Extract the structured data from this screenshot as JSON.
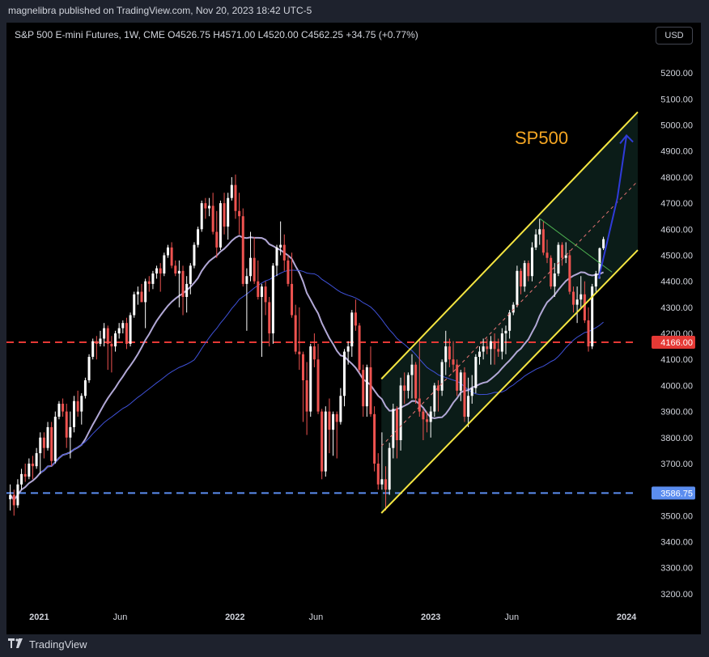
{
  "header": {
    "published": "magnelibra published on TradingView.com, Nov 20, 2023 18:42 UTC-5"
  },
  "chart_header": {
    "symbol_line": "S&P 500 E-mini Futures, 1W, CME  O4526.75  H4571.00  L4520.00  C4562.25  +34.75 (+0.77%)",
    "currency_button": "USD"
  },
  "footer": {
    "logo_icon": "tradingview-logo-icon",
    "brand": "TradingView"
  },
  "colors": {
    "up": "#ffffff",
    "down": "#ef5350",
    "ma_fast": "#b2a8d6",
    "ma_slow": "#3f51d8",
    "channel": "#f5e642",
    "resistance": "#e53935",
    "support": "#5b8def",
    "projection": "#2f3bd9",
    "annotation": "#f5a623"
  },
  "chart_data": {
    "type": "candlestick",
    "title": "SP500",
    "y_axis": {
      "range": [
        3150,
        5300
      ],
      "ticks": [
        3200,
        3300,
        3400,
        3500,
        3600,
        3700,
        3800,
        3900,
        4000,
        4100,
        4200,
        4300,
        4400,
        4500,
        4600,
        4700,
        4800,
        4900,
        5000,
        5100,
        5200
      ],
      "tick_labels": [
        "3200.00",
        "3300.00",
        "3400.00",
        "3500.00",
        "3600.00",
        "3700.00",
        "3800.00",
        "3900.00",
        "4000.00",
        "4100.00",
        "4200.00",
        "4300.00",
        "4400.00",
        "4500.00",
        "4600.00",
        "4700.00",
        "4800.00",
        "4900.00",
        "5000.00",
        "5100.00",
        "5200.00"
      ]
    },
    "x_axis": {
      "range": [
        "2020-11-01",
        "2024-01-22"
      ],
      "ticks": [
        {
          "date": "2021-01-01",
          "label": "2021"
        },
        {
          "date": "2021-06-01",
          "label": "Jun"
        },
        {
          "date": "2022-01-01",
          "label": "2022"
        },
        {
          "date": "2022-06-01",
          "label": "Jun"
        },
        {
          "date": "2023-01-01",
          "label": "2023"
        },
        {
          "date": "2023-06-01",
          "label": "Jun"
        },
        {
          "date": "2024-01-01",
          "label": "2024"
        }
      ]
    },
    "price_labels": [
      {
        "value": 4166.0,
        "label": "4166.00",
        "style": "resistance"
      },
      {
        "value": 3586.75,
        "label": "3586.75",
        "style": "support"
      }
    ],
    "horizontal_levels": [
      {
        "value": 4166.0,
        "color": "#e53935",
        "dashed": true
      },
      {
        "value": 3586.75,
        "color": "#5b8def",
        "dashed": true
      }
    ],
    "channel": {
      "upper": [
        [
          "2022-10-01",
          4025
        ],
        [
          "2024-01-22",
          5050
        ]
      ],
      "lower": [
        [
          "2022-10-01",
          3510
        ],
        [
          "2024-01-22",
          4520
        ]
      ],
      "mid": [
        [
          "2022-10-01",
          3767
        ],
        [
          "2024-01-22",
          4785
        ]
      ]
    },
    "projection_arrow": [
      [
        "2023-11-10",
        4410
      ],
      [
        "2023-12-15",
        4720
      ],
      [
        "2024-01-01",
        4960
      ]
    ],
    "green_line": [
      [
        "2023-07-24",
        4640
      ],
      [
        "2023-12-05",
        4435
      ]
    ],
    "ohlc": [
      [
        "2020-11-08",
        3563,
        3620,
        3520,
        3580
      ],
      [
        "2020-11-15",
        3580,
        3600,
        3500,
        3540
      ],
      [
        "2020-11-22",
        3540,
        3640,
        3530,
        3620
      ],
      [
        "2020-11-29",
        3620,
        3680,
        3600,
        3660
      ],
      [
        "2020-12-06",
        3660,
        3700,
        3630,
        3650
      ],
      [
        "2020-12-13",
        3650,
        3720,
        3640,
        3700
      ],
      [
        "2020-12-20",
        3700,
        3730,
        3640,
        3690
      ],
      [
        "2020-12-27",
        3690,
        3760,
        3680,
        3740
      ],
      [
        "2021-01-03",
        3740,
        3820,
        3660,
        3800
      ],
      [
        "2021-01-10",
        3800,
        3820,
        3720,
        3760
      ],
      [
        "2021-01-17",
        3760,
        3860,
        3750,
        3840
      ],
      [
        "2021-01-24",
        3840,
        3860,
        3690,
        3710
      ],
      [
        "2021-01-31",
        3710,
        3900,
        3700,
        3880
      ],
      [
        "2021-02-07",
        3880,
        3940,
        3870,
        3930
      ],
      [
        "2021-02-14",
        3930,
        3950,
        3880,
        3900
      ],
      [
        "2021-02-21",
        3900,
        3930,
        3760,
        3800
      ],
      [
        "2021-02-28",
        3800,
        3900,
        3720,
        3840
      ],
      [
        "2021-03-07",
        3840,
        3960,
        3820,
        3940
      ],
      [
        "2021-03-14",
        3940,
        3980,
        3880,
        3900
      ],
      [
        "2021-03-21",
        3900,
        3970,
        3850,
        3960
      ],
      [
        "2021-03-28",
        3960,
        4030,
        3950,
        4020
      ],
      [
        "2021-04-04",
        4020,
        4120,
        4010,
        4110
      ],
      [
        "2021-04-11",
        4110,
        4180,
        4100,
        4170
      ],
      [
        "2021-04-18",
        4170,
        4190,
        4100,
        4160
      ],
      [
        "2021-04-25",
        4160,
        4210,
        4150,
        4180
      ],
      [
        "2021-05-02",
        4180,
        4240,
        4150,
        4220
      ],
      [
        "2021-05-09",
        4220,
        4230,
        4060,
        4160
      ],
      [
        "2021-05-16",
        4160,
        4190,
        4050,
        4150
      ],
      [
        "2021-05-23",
        4150,
        4210,
        4130,
        4200
      ],
      [
        "2021-05-30",
        4200,
        4240,
        4180,
        4220
      ],
      [
        "2021-06-06",
        4220,
        4250,
        4200,
        4240
      ],
      [
        "2021-06-13",
        4240,
        4260,
        4140,
        4160
      ],
      [
        "2021-06-20",
        4160,
        4280,
        4150,
        4270
      ],
      [
        "2021-06-27",
        4270,
        4360,
        4260,
        4350
      ],
      [
        "2021-07-04",
        4350,
        4380,
        4310,
        4360
      ],
      [
        "2021-07-11",
        4360,
        4390,
        4320,
        4320
      ],
      [
        "2021-07-18",
        4320,
        4410,
        4220,
        4400
      ],
      [
        "2021-07-25",
        4400,
        4420,
        4360,
        4390
      ],
      [
        "2021-08-01",
        4390,
        4440,
        4370,
        4430
      ],
      [
        "2021-08-08",
        4430,
        4460,
        4410,
        4450
      ],
      [
        "2021-08-15",
        4450,
        4470,
        4360,
        4430
      ],
      [
        "2021-08-22",
        4430,
        4510,
        4420,
        4500
      ],
      [
        "2021-08-29",
        4500,
        4540,
        4490,
        4530
      ],
      [
        "2021-09-05",
        4530,
        4550,
        4450,
        4460
      ],
      [
        "2021-09-12",
        4460,
        4480,
        4420,
        4430
      ],
      [
        "2021-09-19",
        4430,
        4480,
        4300,
        4440
      ],
      [
        "2021-09-26",
        4440,
        4460,
        4270,
        4340
      ],
      [
        "2021-10-03",
        4340,
        4420,
        4280,
        4390
      ],
      [
        "2021-10-10",
        4390,
        4470,
        4350,
        4460
      ],
      [
        "2021-10-17",
        4460,
        4550,
        4450,
        4540
      ],
      [
        "2021-10-24",
        4540,
        4610,
        4530,
        4600
      ],
      [
        "2021-10-31",
        4600,
        4710,
        4590,
        4700
      ],
      [
        "2021-11-07",
        4700,
        4720,
        4640,
        4680
      ],
      [
        "2021-11-14",
        4680,
        4720,
        4650,
        4690
      ],
      [
        "2021-11-21",
        4690,
        4740,
        4580,
        4590
      ],
      [
        "2021-11-28",
        4590,
        4670,
        4490,
        4530
      ],
      [
        "2021-12-05",
        4530,
        4710,
        4520,
        4700
      ],
      [
        "2021-12-12",
        4700,
        4740,
        4580,
        4610
      ],
      [
        "2021-12-19",
        4610,
        4740,
        4560,
        4720
      ],
      [
        "2021-12-26",
        4720,
        4800,
        4710,
        4770
      ],
      [
        "2022-01-02",
        4770,
        4810,
        4640,
        4670
      ],
      [
        "2022-01-09",
        4670,
        4740,
        4580,
        4650
      ],
      [
        "2022-01-16",
        4650,
        4680,
        4380,
        4390
      ],
      [
        "2022-01-23",
        4390,
        4450,
        4210,
        4420
      ],
      [
        "2022-01-30",
        4420,
        4590,
        4400,
        4490
      ],
      [
        "2022-02-06",
        4490,
        4570,
        4390,
        4400
      ],
      [
        "2022-02-13",
        4400,
        4480,
        4330,
        4340
      ],
      [
        "2022-02-20",
        4340,
        4390,
        4110,
        4380
      ],
      [
        "2022-02-27",
        4380,
        4400,
        4270,
        4320
      ],
      [
        "2022-03-06",
        4320,
        4340,
        4150,
        4200
      ],
      [
        "2022-03-13",
        4200,
        4470,
        4160,
        4460
      ],
      [
        "2022-03-20",
        4460,
        4540,
        4420,
        4530
      ],
      [
        "2022-03-27",
        4530,
        4630,
        4500,
        4540
      ],
      [
        "2022-04-03",
        4540,
        4580,
        4440,
        4480
      ],
      [
        "2022-04-10",
        4480,
        4500,
        4380,
        4390
      ],
      [
        "2022-04-17",
        4390,
        4510,
        4260,
        4270
      ],
      [
        "2022-04-24",
        4270,
        4310,
        4120,
        4130
      ],
      [
        "2022-05-01",
        4130,
        4300,
        4060,
        4120
      ],
      [
        "2022-05-08",
        4120,
        4130,
        3860,
        4020
      ],
      [
        "2022-05-15",
        4020,
        4090,
        3810,
        3900
      ],
      [
        "2022-05-22",
        3900,
        4160,
        3880,
        4150
      ],
      [
        "2022-05-29",
        4150,
        4200,
        4070,
        4100
      ],
      [
        "2022-06-05",
        4100,
        4160,
        3890,
        3900
      ],
      [
        "2022-06-12",
        3900,
        3910,
        3640,
        3670
      ],
      [
        "2022-06-19",
        3670,
        3920,
        3650,
        3900
      ],
      [
        "2022-06-26",
        3900,
        3950,
        3740,
        3830
      ],
      [
        "2022-07-03",
        3830,
        3900,
        3730,
        3890
      ],
      [
        "2022-07-10",
        3890,
        3900,
        3720,
        3860
      ],
      [
        "2022-07-17",
        3860,
        3990,
        3850,
        3960
      ],
      [
        "2022-07-24",
        3960,
        4140,
        3920,
        4130
      ],
      [
        "2022-07-31",
        4130,
        4170,
        4080,
        4150
      ],
      [
        "2022-08-07",
        4150,
        4290,
        4110,
        4280
      ],
      [
        "2022-08-14",
        4280,
        4330,
        4210,
        4230
      ],
      [
        "2022-08-21",
        4230,
        4240,
        4050,
        4060
      ],
      [
        "2022-08-28",
        4060,
        4080,
        3880,
        3920
      ],
      [
        "2022-09-04",
        3920,
        4080,
        3880,
        4070
      ],
      [
        "2022-09-11",
        4070,
        4150,
        3880,
        3890
      ],
      [
        "2022-09-18",
        3890,
        3920,
        3670,
        3700
      ],
      [
        "2022-09-25",
        3700,
        3740,
        3600,
        3620
      ],
      [
        "2022-10-02",
        3620,
        3820,
        3600,
        3640
      ],
      [
        "2022-10-09",
        3640,
        3690,
        3520,
        3600
      ],
      [
        "2022-10-16",
        3600,
        3780,
        3580,
        3760
      ],
      [
        "2022-10-23",
        3760,
        3930,
        3720,
        3910
      ],
      [
        "2022-10-30",
        3910,
        3920,
        3720,
        3790
      ],
      [
        "2022-11-06",
        3790,
        4030,
        3750,
        4000
      ],
      [
        "2022-11-13",
        4000,
        4050,
        3930,
        3980
      ],
      [
        "2022-11-20",
        3980,
        4050,
        3950,
        4040
      ],
      [
        "2022-11-27",
        4040,
        4120,
        3950,
        4080
      ],
      [
        "2022-12-04",
        4080,
        4090,
        3930,
        3950
      ],
      [
        "2022-12-11",
        3950,
        4180,
        3880,
        3900
      ],
      [
        "2022-12-18",
        3900,
        3910,
        3790,
        3870
      ],
      [
        "2022-12-25",
        3870,
        3900,
        3820,
        3860
      ],
      [
        "2023-01-01",
        3860,
        3920,
        3800,
        3900
      ],
      [
        "2023-01-08",
        3900,
        4010,
        3880,
        4000
      ],
      [
        "2023-01-15",
        4000,
        4020,
        3900,
        3980
      ],
      [
        "2023-01-22",
        3980,
        4100,
        3960,
        4090
      ],
      [
        "2023-01-29",
        4090,
        4210,
        4040,
        4150
      ],
      [
        "2023-02-05",
        4150,
        4180,
        4070,
        4100
      ],
      [
        "2023-02-12",
        4100,
        4170,
        4050,
        4080
      ],
      [
        "2023-02-19",
        4080,
        4100,
        3960,
        3980
      ],
      [
        "2023-02-26",
        3980,
        4060,
        3940,
        4050
      ],
      [
        "2023-03-05",
        4050,
        4070,
        3860,
        3880
      ],
      [
        "2023-03-12",
        3880,
        4030,
        3840,
        3960
      ],
      [
        "2023-03-19",
        3960,
        4040,
        3930,
        3990
      ],
      [
        "2023-03-26",
        3990,
        4120,
        3970,
        4110
      ],
      [
        "2023-04-02",
        4110,
        4150,
        4080,
        4130
      ],
      [
        "2023-04-09",
        4130,
        4180,
        4100,
        4150
      ],
      [
        "2023-04-16",
        4150,
        4180,
        4120,
        4140
      ],
      [
        "2023-04-23",
        4140,
        4190,
        4080,
        4170
      ],
      [
        "2023-04-30",
        4170,
        4200,
        4080,
        4140
      ],
      [
        "2023-05-07",
        4140,
        4180,
        4110,
        4130
      ],
      [
        "2023-05-14",
        4130,
        4220,
        4100,
        4200
      ],
      [
        "2023-05-21",
        4200,
        4230,
        4120,
        4210
      ],
      [
        "2023-05-28",
        4210,
        4290,
        4180,
        4280
      ],
      [
        "2023-06-04",
        4280,
        4320,
        4270,
        4310
      ],
      [
        "2023-06-11",
        4310,
        4460,
        4300,
        4440
      ],
      [
        "2023-06-18",
        4440,
        4450,
        4350,
        4380
      ],
      [
        "2023-06-25",
        4380,
        4480,
        4360,
        4470
      ],
      [
        "2023-07-02",
        4470,
        4480,
        4400,
        4420
      ],
      [
        "2023-07-09",
        4420,
        4550,
        4400,
        4530
      ],
      [
        "2023-07-16",
        4530,
        4600,
        4520,
        4580
      ],
      [
        "2023-07-23",
        4580,
        4640,
        4540,
        4600
      ],
      [
        "2023-07-30",
        4600,
        4630,
        4500,
        4510
      ],
      [
        "2023-08-06",
        4510,
        4560,
        4470,
        4490
      ],
      [
        "2023-08-13",
        4490,
        4500,
        4370,
        4380
      ],
      [
        "2023-08-20",
        4380,
        4470,
        4340,
        4430
      ],
      [
        "2023-08-27",
        4430,
        4550,
        4420,
        4540
      ],
      [
        "2023-09-03",
        4540,
        4550,
        4460,
        4490
      ],
      [
        "2023-09-10",
        4490,
        4550,
        4470,
        4500
      ],
      [
        "2023-09-17",
        4500,
        4520,
        4350,
        4360
      ],
      [
        "2023-09-24",
        4360,
        4380,
        4280,
        4310
      ],
      [
        "2023-10-01",
        4310,
        4380,
        4240,
        4330
      ],
      [
        "2023-10-08",
        4330,
        4420,
        4300,
        4350
      ],
      [
        "2023-10-15",
        4350,
        4400,
        4240,
        4250
      ],
      [
        "2023-10-22",
        4250,
        4300,
        4130,
        4150
      ],
      [
        "2023-10-29",
        4150,
        4390,
        4140,
        4380
      ],
      [
        "2023-11-05",
        4380,
        4440,
        4360,
        4430
      ],
      [
        "2023-11-12",
        4430,
        4530,
        4410,
        4527
      ],
      [
        "2023-11-19",
        4527,
        4571,
        4520,
        4562
      ]
    ]
  }
}
